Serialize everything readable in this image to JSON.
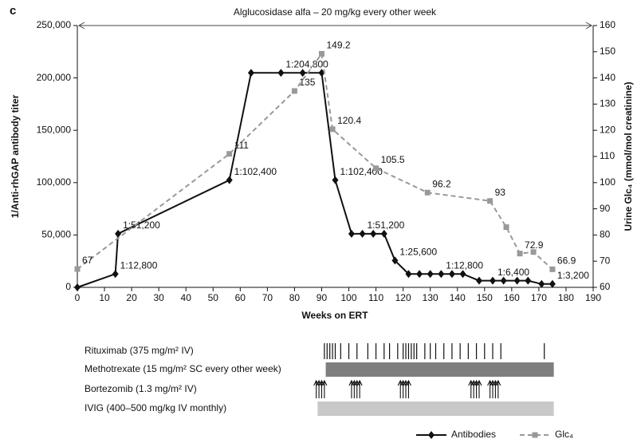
{
  "chart_data": {
    "type": "line",
    "panel_label": "c",
    "top_annotation": "Alglucosidase alfa – 20 mg/kg every other week",
    "xlabel": "Weeks on ERT",
    "ylabel": "1/Anti-rhGAP antibody titer",
    "y2label": "Urine Glc₄ (mmol/mol creatinine)",
    "xlim": [
      0,
      190
    ],
    "xticks": [
      0,
      10,
      20,
      30,
      40,
      50,
      60,
      70,
      80,
      90,
      100,
      110,
      120,
      130,
      140,
      150,
      160,
      170,
      180,
      190
    ],
    "ylim": [
      0,
      250000
    ],
    "yticks": [
      0,
      {
        "value": 50000,
        "label": "50,000"
      },
      {
        "value": 100000,
        "label": "100,000"
      },
      {
        "value": 150000,
        "label": "150,000"
      },
      {
        "value": 200000,
        "label": "200,000"
      },
      {
        "value": 250000,
        "label": "250,000"
      }
    ],
    "y2lim": [
      60,
      160
    ],
    "y2ticks": [
      60,
      70,
      80,
      90,
      100,
      110,
      120,
      130,
      140,
      150,
      160
    ],
    "series": [
      {
        "name": "Antibodies",
        "color": "#111111",
        "marker": "diamond",
        "dashed": false,
        "x": [
          0,
          14,
          15,
          56,
          64,
          75,
          83,
          90,
          95,
          101,
          105,
          109,
          113,
          117,
          122,
          126,
          130,
          134,
          138,
          142,
          148,
          153,
          157,
          162,
          166,
          171,
          175
        ],
        "values": [
          0,
          12800,
          51200,
          102400,
          204800,
          204800,
          204800,
          204800,
          102400,
          51200,
          51200,
          51200,
          51200,
          25600,
          12800,
          12800,
          12800,
          12800,
          12800,
          12800,
          6400,
          6400,
          6400,
          6400,
          6400,
          3200,
          3200
        ],
        "value_labels": [
          null,
          "1:12,800",
          "1:51,200",
          "1:102,400",
          null,
          "1:204,800",
          null,
          null,
          "1:102,400",
          null,
          "1:51,200",
          null,
          null,
          "1:25,600",
          null,
          null,
          null,
          "1:12,800",
          null,
          null,
          null,
          "1:6,400",
          null,
          null,
          null,
          null,
          "1:3,200"
        ]
      },
      {
        "name": "Glc₄",
        "color": "#999999",
        "marker": "square",
        "dashed": true,
        "axis": "y2",
        "x": [
          0,
          56,
          80,
          90,
          94,
          110,
          129,
          152,
          158,
          163,
          168,
          175
        ],
        "values": [
          67,
          111,
          135,
          149.2,
          120.4,
          105.5,
          96.2,
          93,
          83,
          72.9,
          73.5,
          66.9
        ],
        "value_labels": [
          "67",
          "111",
          "135",
          "149.2",
          "120.4",
          "105.5",
          "96.2",
          "93",
          null,
          "72.9",
          null,
          "66.9"
        ]
      }
    ],
    "treatments": [
      {
        "name": "Rituximab (375 mg/m² IV)",
        "kind": "ticks",
        "weeks": [
          91,
          92,
          93,
          94,
          95,
          97,
          100,
          103,
          107,
          110,
          113,
          115,
          118,
          120,
          121,
          122,
          123,
          124,
          125,
          128,
          130,
          132,
          135,
          138,
          141,
          144,
          147,
          150,
          153,
          156,
          172
        ]
      },
      {
        "name": "Methotrexate (15 mg/m² SC every other week)",
        "kind": "bar",
        "color": "#7f7f7f",
        "start": 91.5,
        "end": 175.5
      },
      {
        "name": "Bortezomib (1.3 mg/m² IV)",
        "kind": "arrows",
        "weeks": [
          88,
          89,
          90,
          91,
          101,
          102,
          103,
          104,
          119,
          120,
          121,
          122,
          145,
          146,
          147,
          148,
          152,
          153,
          154,
          155
        ]
      },
      {
        "name": "IVIG (400–500 mg/kg IV monthly)",
        "kind": "bar",
        "color": "#c8c8c8",
        "start": 88.5,
        "end": 175.5
      }
    ]
  }
}
